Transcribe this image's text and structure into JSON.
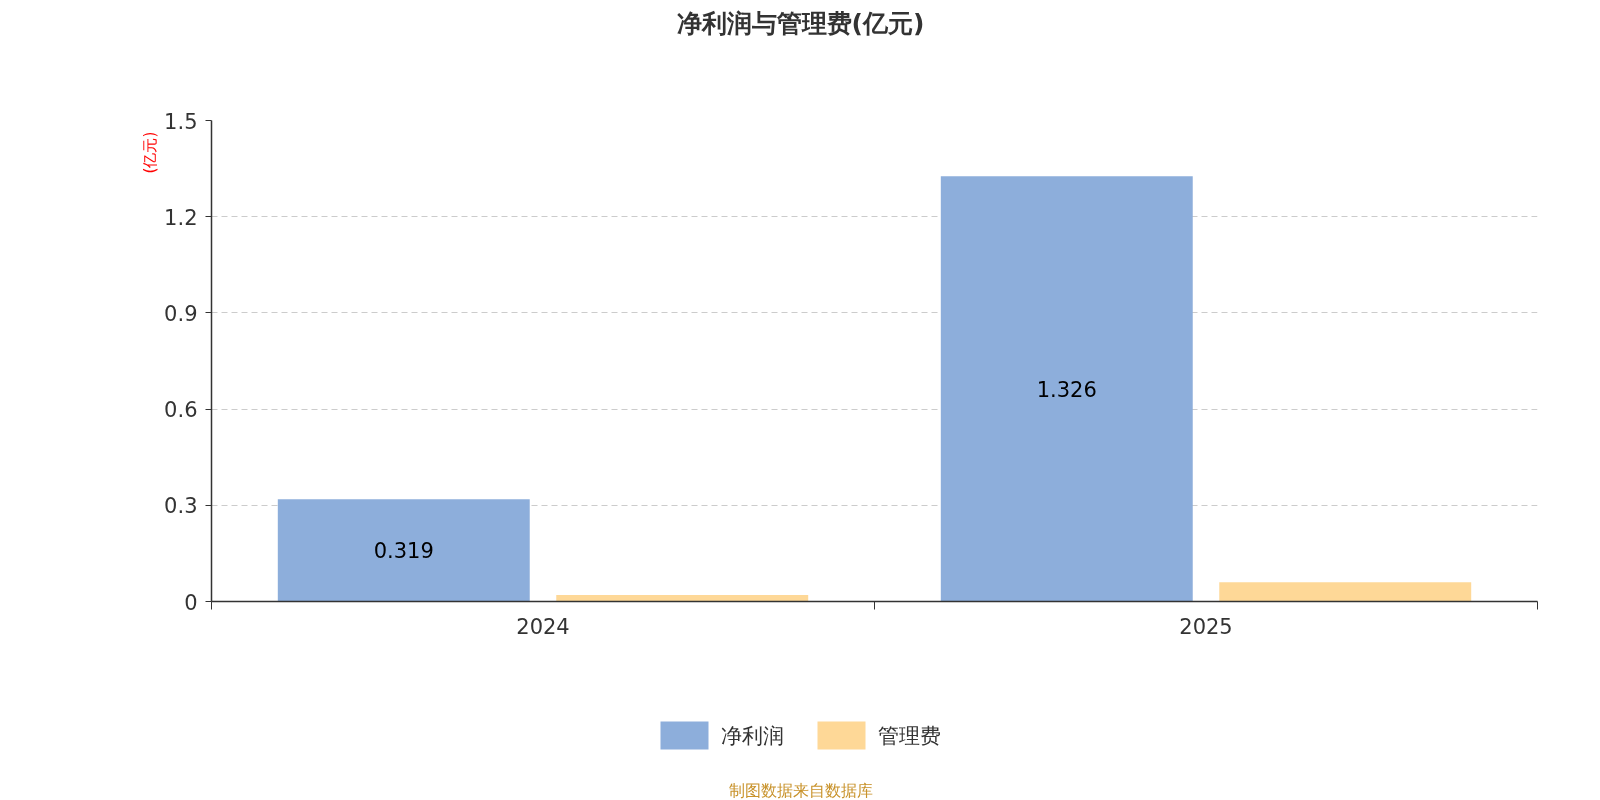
{
  "chart_data": {
    "type": "bar",
    "title": "净利润与管理费(亿元)",
    "ylabel": "(亿元)",
    "categories": [
      "2024",
      "2025"
    ],
    "series": [
      {
        "name": "净利润",
        "color": "#8daedb",
        "values": [
          0.319,
          1.326
        ],
        "value_labels": [
          "0.319",
          "1.326"
        ]
      },
      {
        "name": "管理费",
        "color": "#fed897",
        "values": [
          0.02,
          0.06
        ]
      }
    ],
    "ylim": [
      0,
      1.5
    ],
    "yticks": [
      0,
      0.3,
      0.6,
      0.9,
      1.2,
      1.5
    ],
    "grid": "y",
    "legend": "bottom",
    "annotations": [
      "制图数据来自数据库"
    ]
  }
}
